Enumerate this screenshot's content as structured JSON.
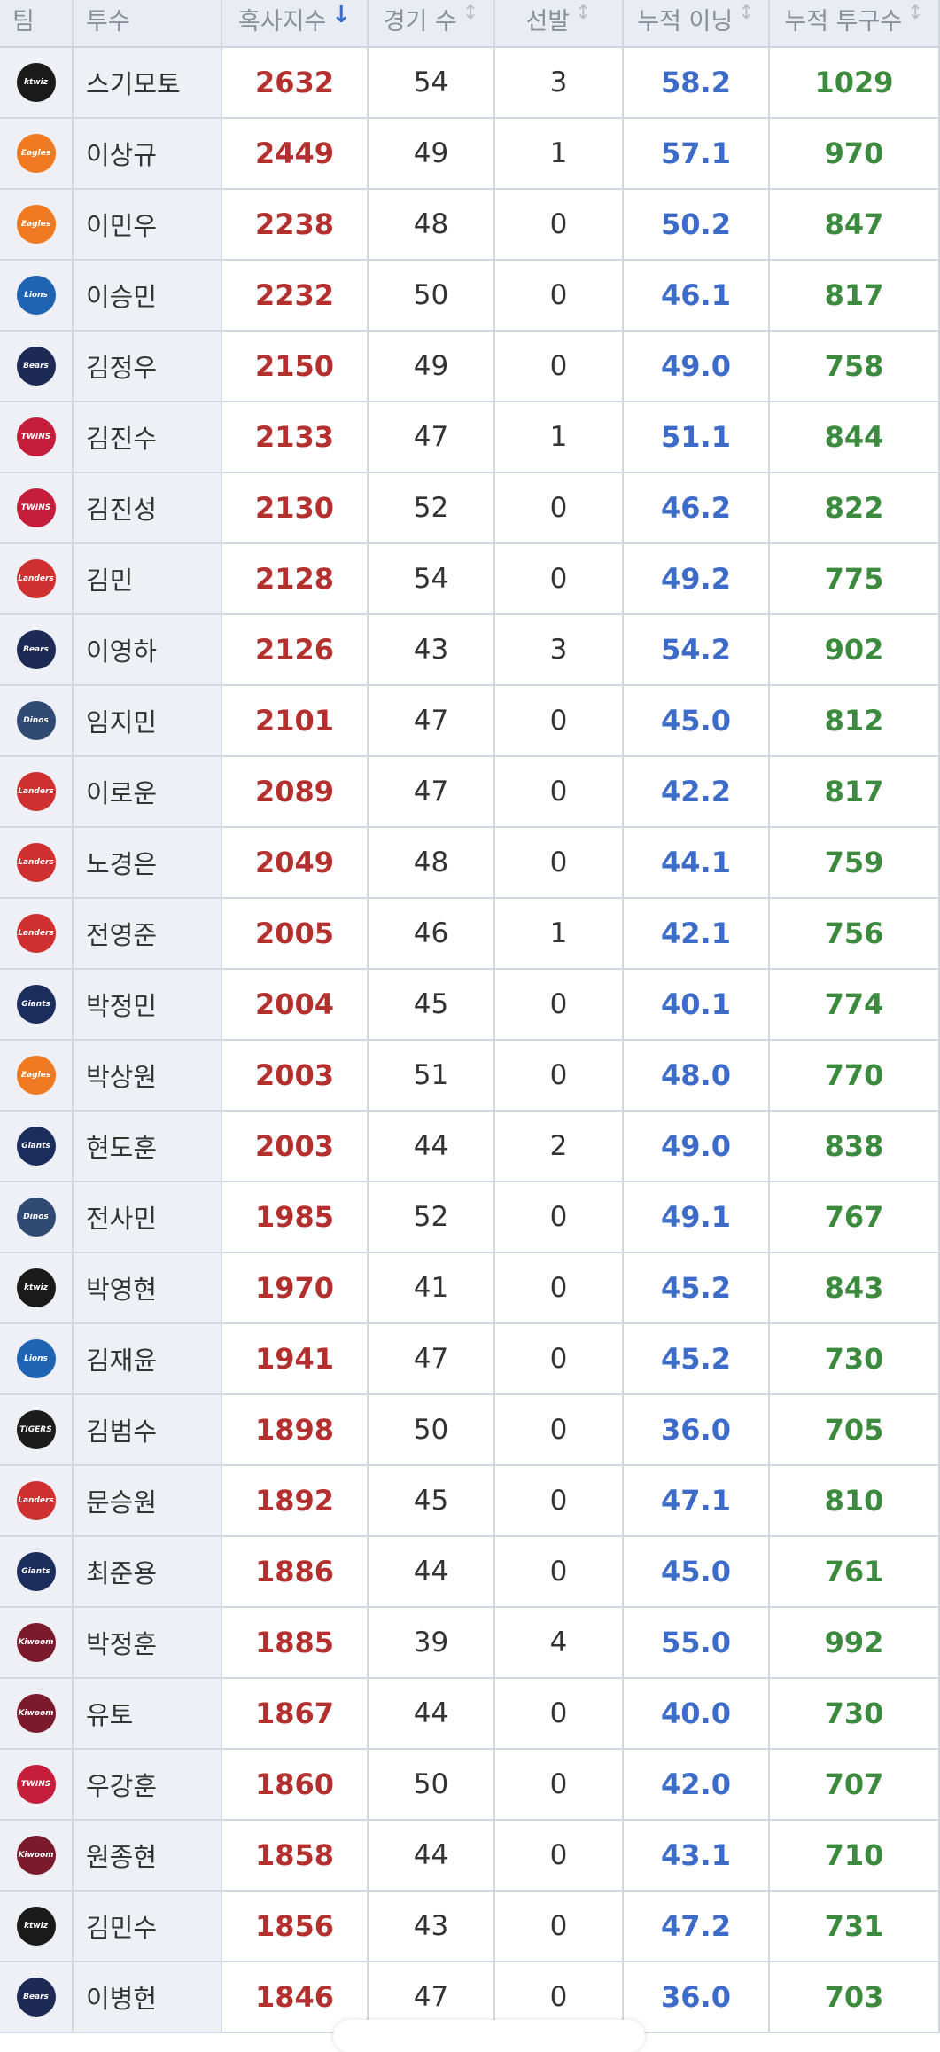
{
  "header": [
    "팀",
    "투수",
    "혹사지수",
    "경기 수",
    "선발",
    "누적 이닝",
    "누적 투구수"
  ],
  "rows": [
    {
      "team": "ktwiz",
      "team_color": "#1a1a1a",
      "pitcher": "스기모토",
      "index": 2632,
      "games": 54,
      "starts": 3,
      "innings": "58.2",
      "pitches": 1029
    },
    {
      "team": "Eagles",
      "team_color": "#f07a22",
      "pitcher": "이상규",
      "index": 2449,
      "games": 49,
      "starts": 1,
      "innings": "57.1",
      "pitches": 970
    },
    {
      "team": "Eagles",
      "team_color": "#f07a22",
      "pitcher": "이민우",
      "index": 2238,
      "games": 48,
      "starts": 0,
      "innings": "50.2",
      "pitches": 847
    },
    {
      "team": "Lions",
      "team_color": "#1f63b3",
      "pitcher": "이승민",
      "index": 2232,
      "games": 50,
      "starts": 0,
      "innings": "46.1",
      "pitches": 817
    },
    {
      "team": "Bears",
      "team_color": "#1d2a55",
      "pitcher": "김정우",
      "index": 2150,
      "games": 49,
      "starts": 0,
      "innings": "49.0",
      "pitches": 758
    },
    {
      "team": "TWINS",
      "team_color": "#c41e3a",
      "pitcher": "김진수",
      "index": 2133,
      "games": 47,
      "starts": 1,
      "innings": "51.1",
      "pitches": 844
    },
    {
      "team": "TWINS",
      "team_color": "#c41e3a",
      "pitcher": "김진성",
      "index": 2130,
      "games": 52,
      "starts": 0,
      "innings": "46.2",
      "pitches": 822
    },
    {
      "team": "Landers",
      "team_color": "#ce2f2f",
      "pitcher": "김민",
      "index": 2128,
      "games": 54,
      "starts": 0,
      "innings": "49.2",
      "pitches": 775
    },
    {
      "team": "Bears",
      "team_color": "#1d2a55",
      "pitcher": "이영하",
      "index": 2126,
      "games": 43,
      "starts": 3,
      "innings": "54.2",
      "pitches": 902
    },
    {
      "team": "Dinos",
      "team_color": "#304a74",
      "pitcher": "임지민",
      "index": 2101,
      "games": 47,
      "starts": 0,
      "innings": "45.0",
      "pitches": 812
    },
    {
      "team": "Landers",
      "team_color": "#ce2f2f",
      "pitcher": "이로운",
      "index": 2089,
      "games": 47,
      "starts": 0,
      "innings": "42.2",
      "pitches": 817
    },
    {
      "team": "Landers",
      "team_color": "#ce2f2f",
      "pitcher": "노경은",
      "index": 2049,
      "games": 48,
      "starts": 0,
      "innings": "44.1",
      "pitches": 759
    },
    {
      "team": "Landers",
      "team_color": "#ce2f2f",
      "pitcher": "전영준",
      "index": 2005,
      "games": 46,
      "starts": 1,
      "innings": "42.1",
      "pitches": 756
    },
    {
      "team": "Giants",
      "team_color": "#1a2d5c",
      "pitcher": "박정민",
      "index": 2004,
      "games": 45,
      "starts": 0,
      "innings": "40.1",
      "pitches": 774
    },
    {
      "team": "Eagles",
      "team_color": "#f07a22",
      "pitcher": "박상원",
      "index": 2003,
      "games": 51,
      "starts": 0,
      "innings": "48.0",
      "pitches": 770
    },
    {
      "team": "Giants",
      "team_color": "#1a2d5c",
      "pitcher": "현도훈",
      "index": 2003,
      "games": 44,
      "starts": 2,
      "innings": "49.0",
      "pitches": 838
    },
    {
      "team": "Dinos",
      "team_color": "#304a74",
      "pitcher": "전사민",
      "index": 1985,
      "games": 52,
      "starts": 0,
      "innings": "49.1",
      "pitches": 767
    },
    {
      "team": "ktwiz",
      "team_color": "#1a1a1a",
      "pitcher": "박영현",
      "index": 1970,
      "games": 41,
      "starts": 0,
      "innings": "45.2",
      "pitches": 843
    },
    {
      "team": "Lions",
      "team_color": "#1f63b3",
      "pitcher": "김재윤",
      "index": 1941,
      "games": 47,
      "starts": 0,
      "innings": "45.2",
      "pitches": 730
    },
    {
      "team": "TIGERS",
      "team_color": "#1b1b1b",
      "pitcher": "김범수",
      "index": 1898,
      "games": 50,
      "starts": 0,
      "innings": "36.0",
      "pitches": 705
    },
    {
      "team": "Landers",
      "team_color": "#ce2f2f",
      "pitcher": "문승원",
      "index": 1892,
      "games": 45,
      "starts": 0,
      "innings": "47.1",
      "pitches": 810
    },
    {
      "team": "Giants",
      "team_color": "#1a2d5c",
      "pitcher": "최준용",
      "index": 1886,
      "games": 44,
      "starts": 0,
      "innings": "45.0",
      "pitches": 761
    },
    {
      "team": "Kiwoom",
      "team_color": "#7b1a2c",
      "pitcher": "박정훈",
      "index": 1885,
      "games": 39,
      "starts": 4,
      "innings": "55.0",
      "pitches": 992
    },
    {
      "team": "Kiwoom",
      "team_color": "#7b1a2c",
      "pitcher": "유토",
      "index": 1867,
      "games": 44,
      "starts": 0,
      "innings": "40.0",
      "pitches": 730
    },
    {
      "team": "TWINS",
      "team_color": "#c41e3a",
      "pitcher": "우강훈",
      "index": 1860,
      "games": 50,
      "starts": 0,
      "innings": "42.0",
      "pitches": 707
    },
    {
      "team": "Kiwoom",
      "team_color": "#7b1a2c",
      "pitcher": "원종현",
      "index": 1858,
      "games": 44,
      "starts": 0,
      "innings": "43.1",
      "pitches": 710
    },
    {
      "team": "ktwiz",
      "team_color": "#1a1a1a",
      "pitcher": "김민수",
      "index": 1856,
      "games": 43,
      "starts": 0,
      "innings": "47.2",
      "pitches": 731
    },
    {
      "team": "Bears",
      "team_color": "#1d2a55",
      "pitcher": "이병헌",
      "index": 1846,
      "games": 47,
      "starts": 0,
      "innings": "36.0",
      "pitches": 703
    }
  ]
}
